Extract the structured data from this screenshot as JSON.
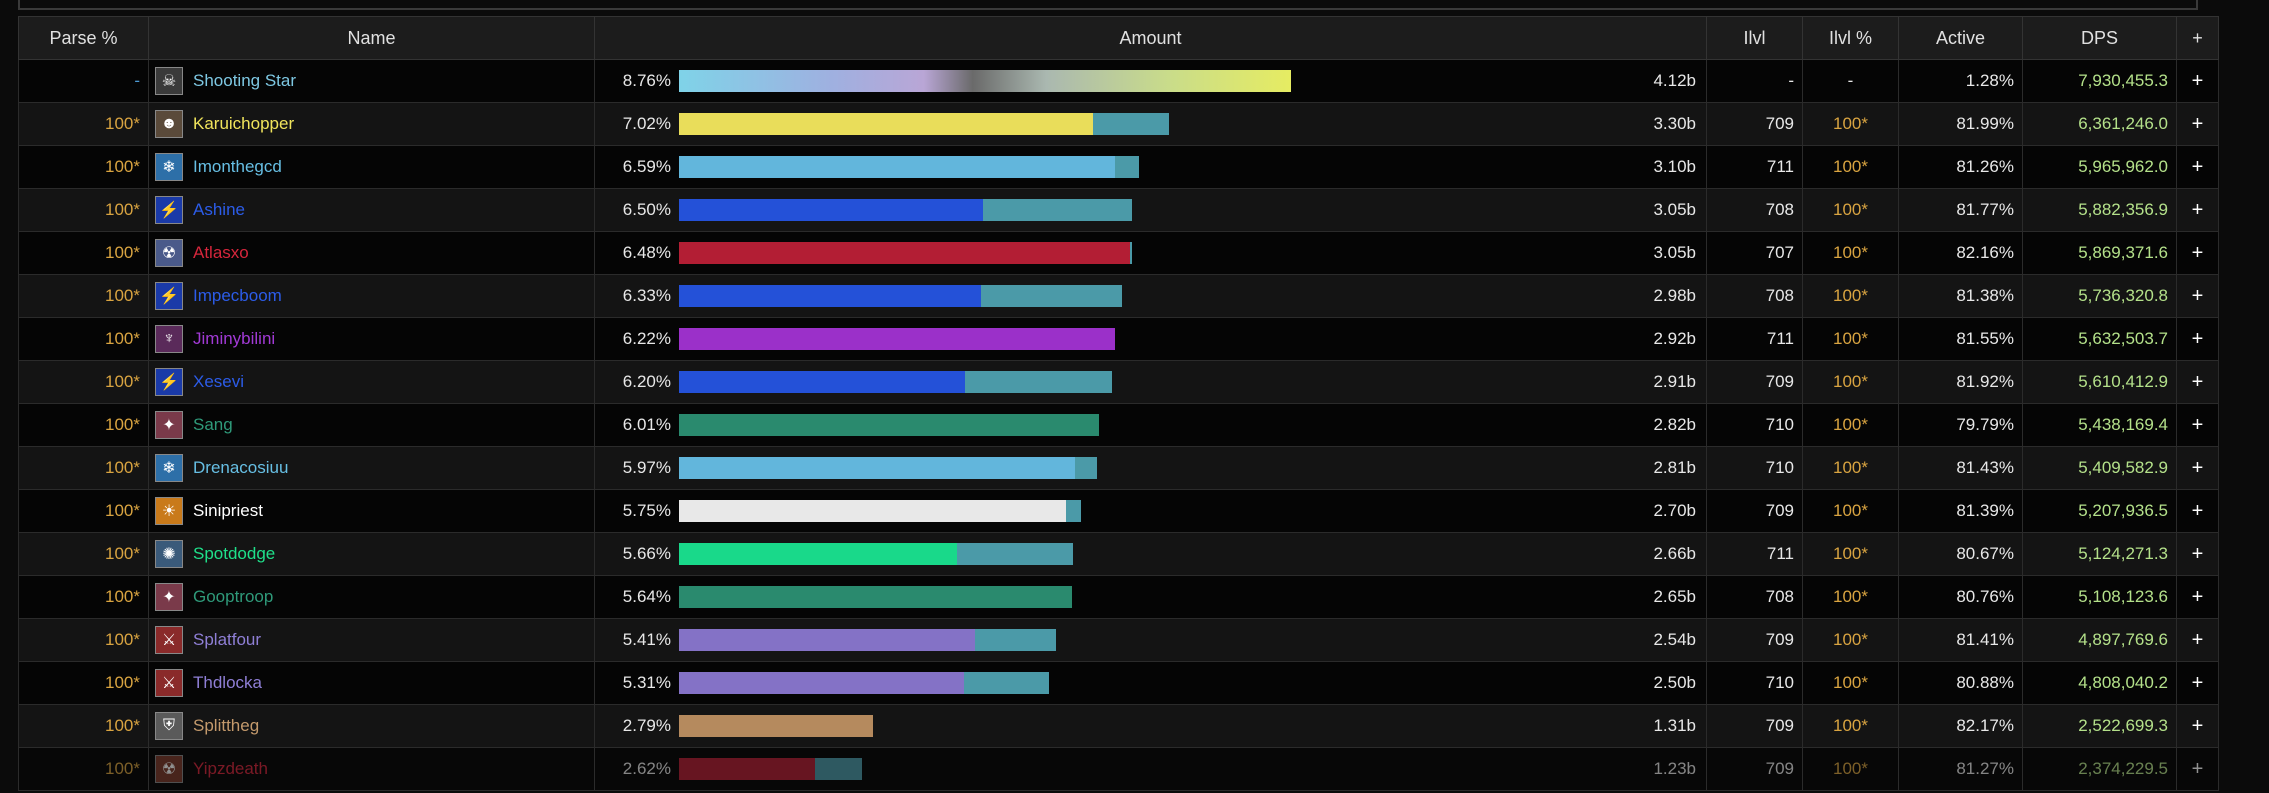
{
  "header": {
    "parse": "Parse %",
    "name": "Name",
    "amount": "Amount",
    "ilvl": "Ilvl",
    "ilvl_pct": "Ilvl %",
    "active": "Active",
    "dps": "DPS",
    "plus": "+"
  },
  "colors": {
    "header_bg": "#1c1c1c",
    "row_odd": "#050505",
    "row_even": "#141414",
    "parse_orange": "#d9a441",
    "dps_green": "#b4e18a",
    "bar_secondary": "#4b9aa8"
  },
  "rows": [
    {
      "parse": "-",
      "name": "Shooting Star",
      "name_color": "#7ec8e3",
      "icon": "skull-icon",
      "icon_glyph": "☠",
      "icon_bg": "#3a3a3a",
      "pct": "8.76%",
      "primary_fraction": 0.695,
      "secondary_fraction": 0.0,
      "bar_color": "rainbow",
      "amount": "4.12b",
      "ilvl": "-",
      "ilvl_pct": "-",
      "active": "1.28%",
      "dps": "7,930,455.3",
      "plus": "+"
    },
    {
      "parse": "100*",
      "name": "Karuichopper",
      "name_color": "#f0e45c",
      "icon": "rogue-icon",
      "icon_glyph": "☻",
      "icon_bg": "#5a4a3a",
      "pct": "7.02%",
      "primary_fraction": 0.47,
      "secondary_fraction": 0.557,
      "bar_color": "#e9dd5a",
      "amount": "3.30b",
      "ilvl": "709",
      "ilvl_pct": "100*",
      "active": "81.99%",
      "dps": "6,361,246.0",
      "plus": "+"
    },
    {
      "parse": "100*",
      "name": "Imonthegcd",
      "name_color": "#67bfe4",
      "icon": "mage-icon",
      "icon_glyph": "❄",
      "icon_bg": "#2d6fa8",
      "pct": "6.59%",
      "primary_fraction": 0.495,
      "secondary_fraction": 0.523,
      "bar_color": "#62b6dc",
      "amount": "3.10b",
      "ilvl": "711",
      "ilvl_pct": "100*",
      "active": "81.26%",
      "dps": "5,965,962.0",
      "plus": "+"
    },
    {
      "parse": "100*",
      "name": "Ashine",
      "name_color": "#2c5ce8",
      "icon": "shaman-icon",
      "icon_glyph": "⚡",
      "icon_bg": "#1a3aa8",
      "pct": "6.50%",
      "primary_fraction": 0.345,
      "secondary_fraction": 0.515,
      "bar_color": "#2451d8",
      "amount": "3.05b",
      "ilvl": "708",
      "ilvl_pct": "100*",
      "active": "81.77%",
      "dps": "5,882,356.9",
      "plus": "+"
    },
    {
      "parse": "100*",
      "name": "Atlasxo",
      "name_color": "#d6263c",
      "icon": "deathknight-icon",
      "icon_glyph": "☢",
      "icon_bg": "#4a5a8a",
      "pct": "6.48%",
      "primary_fraction": 0.512,
      "secondary_fraction": 0.515,
      "bar_color": "#b31e34",
      "amount": "3.05b",
      "ilvl": "707",
      "ilvl_pct": "100*",
      "active": "82.16%",
      "dps": "5,869,371.6",
      "plus": "+"
    },
    {
      "parse": "100*",
      "name": "Impecboom",
      "name_color": "#2c5ce8",
      "icon": "shaman-icon",
      "icon_glyph": "⚡",
      "icon_bg": "#1a3aa8",
      "pct": "6.33%",
      "primary_fraction": 0.343,
      "secondary_fraction": 0.503,
      "bar_color": "#2451d8",
      "amount": "2.98b",
      "ilvl": "708",
      "ilvl_pct": "100*",
      "active": "81.38%",
      "dps": "5,736,320.8",
      "plus": "+"
    },
    {
      "parse": "100*",
      "name": "Jiminybilini",
      "name_color": "#a23ad6",
      "icon": "demonhunter-icon",
      "icon_glyph": "♆",
      "icon_bg": "#5a2a5a",
      "pct": "6.22%",
      "primary_fraction": 0.495,
      "secondary_fraction": 0.495,
      "bar_color": "#9b30c9",
      "amount": "2.92b",
      "ilvl": "711",
      "ilvl_pct": "100*",
      "active": "81.55%",
      "dps": "5,632,503.7",
      "plus": "+"
    },
    {
      "parse": "100*",
      "name": "Xesevi",
      "name_color": "#2c5ce8",
      "icon": "shaman-icon",
      "icon_glyph": "⚡",
      "icon_bg": "#1a3aa8",
      "pct": "6.20%",
      "primary_fraction": 0.325,
      "secondary_fraction": 0.492,
      "bar_color": "#2451d8",
      "amount": "2.91b",
      "ilvl": "709",
      "ilvl_pct": "100*",
      "active": "81.92%",
      "dps": "5,610,412.9",
      "plus": "+"
    },
    {
      "parse": "100*",
      "name": "Sang",
      "name_color": "#2f9a7a",
      "icon": "evoker-icon",
      "icon_glyph": "✦",
      "icon_bg": "#7a3a4a",
      "pct": "6.01%",
      "primary_fraction": 0.477,
      "secondary_fraction": 0.477,
      "bar_color": "#2a8a6e",
      "amount": "2.82b",
      "ilvl": "710",
      "ilvl_pct": "100*",
      "active": "79.79%",
      "dps": "5,438,169.4",
      "plus": "+"
    },
    {
      "parse": "100*",
      "name": "Drenacosiuu",
      "name_color": "#67bfe4",
      "icon": "mage-icon",
      "icon_glyph": "❄",
      "icon_bg": "#2d6fa8",
      "pct": "5.97%",
      "primary_fraction": 0.45,
      "secondary_fraction": 0.475,
      "bar_color": "#62b6dc",
      "amount": "2.81b",
      "ilvl": "710",
      "ilvl_pct": "100*",
      "active": "81.43%",
      "dps": "5,409,582.9",
      "plus": "+"
    },
    {
      "parse": "100*",
      "name": "Sinipriest",
      "name_color": "#ffffff",
      "icon": "priest-icon",
      "icon_glyph": "☀",
      "icon_bg": "#c97a1a",
      "pct": "5.75%",
      "primary_fraction": 0.44,
      "secondary_fraction": 0.457,
      "bar_color": "#e8e8e8",
      "amount": "2.70b",
      "ilvl": "709",
      "ilvl_pct": "100*",
      "active": "81.39%",
      "dps": "5,207,936.5",
      "plus": "+"
    },
    {
      "parse": "100*",
      "name": "Spotdodge",
      "name_color": "#1fe08a",
      "icon": "monk-icon",
      "icon_glyph": "✺",
      "icon_bg": "#3a5a7a",
      "pct": "5.66%",
      "primary_fraction": 0.316,
      "secondary_fraction": 0.448,
      "bar_color": "#19d98a",
      "amount": "2.66b",
      "ilvl": "711",
      "ilvl_pct": "100*",
      "active": "80.67%",
      "dps": "5,124,271.3",
      "plus": "+"
    },
    {
      "parse": "100*",
      "name": "Gooptroop",
      "name_color": "#2f9a7a",
      "icon": "evoker-icon",
      "icon_glyph": "✦",
      "icon_bg": "#7a3a4a",
      "pct": "5.64%",
      "primary_fraction": 0.447,
      "secondary_fraction": 0.447,
      "bar_color": "#2a8a6e",
      "amount": "2.65b",
      "ilvl": "708",
      "ilvl_pct": "100*",
      "active": "80.76%",
      "dps": "5,108,123.6",
      "plus": "+"
    },
    {
      "parse": "100*",
      "name": "Splatfour",
      "name_color": "#8f7fd6",
      "icon": "warlock-icon",
      "icon_glyph": "⚔",
      "icon_bg": "#8a2a2a",
      "pct": "5.41%",
      "primary_fraction": 0.336,
      "secondary_fraction": 0.428,
      "bar_color": "#8472c6",
      "amount": "2.54b",
      "ilvl": "709",
      "ilvl_pct": "100*",
      "active": "81.41%",
      "dps": "4,897,769.6",
      "plus": "+"
    },
    {
      "parse": "100*",
      "name": "Thdlocka",
      "name_color": "#8f7fd6",
      "icon": "warlock-icon",
      "icon_glyph": "⚔",
      "icon_bg": "#8a2a2a",
      "pct": "5.31%",
      "primary_fraction": 0.324,
      "secondary_fraction": 0.421,
      "bar_color": "#8472c6",
      "amount": "2.50b",
      "ilvl": "710",
      "ilvl_pct": "100*",
      "active": "80.88%",
      "dps": "4,808,040.2",
      "plus": "+"
    },
    {
      "parse": "100*",
      "name": "Splittheg",
      "name_color": "#c49a6c",
      "icon": "warrior-icon",
      "icon_glyph": "⛨",
      "icon_bg": "#5a5a5a",
      "pct": "2.79%",
      "primary_fraction": 0.221,
      "secondary_fraction": 0.221,
      "bar_color": "#b58a5e",
      "amount": "1.31b",
      "ilvl": "709",
      "ilvl_pct": "100*",
      "active": "82.17%",
      "dps": "2,522,699.3",
      "plus": "+"
    },
    {
      "parse": "100*",
      "name": "Yipzdeath",
      "name_color": "#d6263c",
      "icon": "deathknight-icon",
      "icon_glyph": "☢",
      "icon_bg": "#7a3a2a",
      "pct": "2.62%",
      "primary_fraction": 0.154,
      "secondary_fraction": 0.208,
      "bar_color": "#b31e34",
      "amount": "1.23b",
      "ilvl": "709",
      "ilvl_pct": "100*",
      "active": "81.27%",
      "dps": "2,374,229.5",
      "plus": "+"
    }
  ]
}
